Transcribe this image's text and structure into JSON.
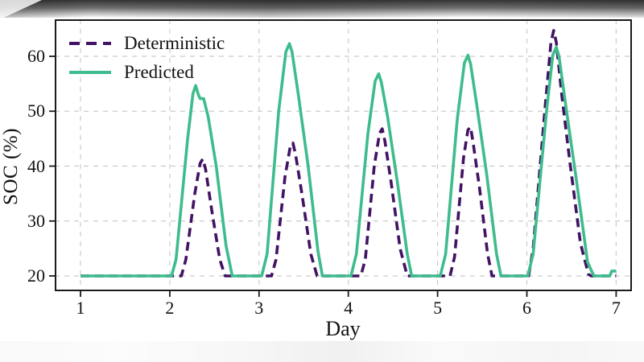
{
  "chart_data": {
    "type": "line",
    "title": "",
    "xlabel": "Day",
    "ylabel": "SOC (%)",
    "xlim": [
      0.71,
      7.17
    ],
    "ylim": [
      17.2,
      66.7
    ],
    "xticks": [
      1,
      2,
      3,
      4,
      5,
      6,
      7
    ],
    "yticks": [
      20,
      30,
      40,
      50,
      60
    ],
    "grid": true,
    "grid_color": "#cccccc",
    "spine_color": "#1a1a1a",
    "legend_position": "upper-left",
    "series": [
      {
        "name": "Deterministic",
        "color": "#421364",
        "style": "dashed",
        "points": [
          [
            1.0,
            20
          ],
          [
            2.13,
            20
          ],
          [
            2.18,
            23
          ],
          [
            2.28,
            35
          ],
          [
            2.34,
            40.5
          ],
          [
            2.37,
            41.3
          ],
          [
            2.4,
            39.5
          ],
          [
            2.47,
            32
          ],
          [
            2.56,
            23
          ],
          [
            2.62,
            20
          ],
          [
            3.14,
            20
          ],
          [
            3.19,
            23
          ],
          [
            3.29,
            38
          ],
          [
            3.35,
            43.6
          ],
          [
            3.38,
            44.2
          ],
          [
            3.41,
            42
          ],
          [
            3.48,
            35
          ],
          [
            3.58,
            24
          ],
          [
            3.65,
            20
          ],
          [
            4.14,
            20
          ],
          [
            4.19,
            23
          ],
          [
            4.29,
            40
          ],
          [
            4.35,
            46.0
          ],
          [
            4.38,
            46.8
          ],
          [
            4.41,
            44.5
          ],
          [
            4.48,
            37
          ],
          [
            4.58,
            25
          ],
          [
            4.66,
            20
          ],
          [
            5.14,
            20
          ],
          [
            5.19,
            23.5
          ],
          [
            5.29,
            41.5
          ],
          [
            5.34,
            46.6
          ],
          [
            5.37,
            47.1
          ],
          [
            5.4,
            44
          ],
          [
            5.47,
            36
          ],
          [
            5.56,
            24
          ],
          [
            5.61,
            20
          ],
          [
            6.02,
            20
          ],
          [
            6.07,
            25
          ],
          [
            6.2,
            50
          ],
          [
            6.27,
            62.5
          ],
          [
            6.3,
            64.7
          ],
          [
            6.33,
            62.5
          ],
          [
            6.39,
            53
          ],
          [
            6.48,
            41
          ],
          [
            6.6,
            26
          ],
          [
            6.69,
            20.3
          ],
          [
            6.72,
            20
          ],
          [
            7.0,
            20
          ]
        ]
      },
      {
        "name": "Predicted",
        "color": "#3ebc8d",
        "style": "solid",
        "points": [
          [
            1.0,
            20
          ],
          [
            2.02,
            20
          ],
          [
            2.07,
            23
          ],
          [
            2.2,
            45
          ],
          [
            2.26,
            53.2
          ],
          [
            2.29,
            54.7
          ],
          [
            2.32,
            53.0
          ],
          [
            2.34,
            52.3
          ],
          [
            2.38,
            52.3
          ],
          [
            2.43,
            49.0
          ],
          [
            2.52,
            40
          ],
          [
            2.63,
            25.5
          ],
          [
            2.7,
            20
          ],
          [
            3.03,
            20
          ],
          [
            3.09,
            24
          ],
          [
            3.22,
            50
          ],
          [
            3.3,
            60.8
          ],
          [
            3.34,
            62.3
          ],
          [
            3.37,
            60.8
          ],
          [
            3.44,
            53
          ],
          [
            3.55,
            40
          ],
          [
            3.66,
            24.5
          ],
          [
            3.71,
            20
          ],
          [
            4.03,
            20
          ],
          [
            4.09,
            24
          ],
          [
            4.22,
            46
          ],
          [
            4.3,
            55.5
          ],
          [
            4.34,
            56.8
          ],
          [
            4.37,
            55.3
          ],
          [
            4.44,
            49
          ],
          [
            4.55,
            37
          ],
          [
            4.66,
            24
          ],
          [
            4.71,
            20
          ],
          [
            5.03,
            20
          ],
          [
            5.09,
            24
          ],
          [
            5.22,
            48.5
          ],
          [
            5.3,
            58.8
          ],
          [
            5.34,
            60.2
          ],
          [
            5.37,
            58.6
          ],
          [
            5.44,
            51
          ],
          [
            5.55,
            38.5
          ],
          [
            5.66,
            24
          ],
          [
            5.71,
            20
          ],
          [
            6.01,
            20
          ],
          [
            6.07,
            24
          ],
          [
            6.22,
            50
          ],
          [
            6.29,
            60.2
          ],
          [
            6.33,
            61.7
          ],
          [
            6.36,
            60
          ],
          [
            6.44,
            50.5
          ],
          [
            6.55,
            38
          ],
          [
            6.68,
            22.5
          ],
          [
            6.75,
            20
          ],
          [
            6.93,
            20
          ],
          [
            6.95,
            20.9
          ],
          [
            7.0,
            20.9
          ]
        ]
      }
    ]
  }
}
